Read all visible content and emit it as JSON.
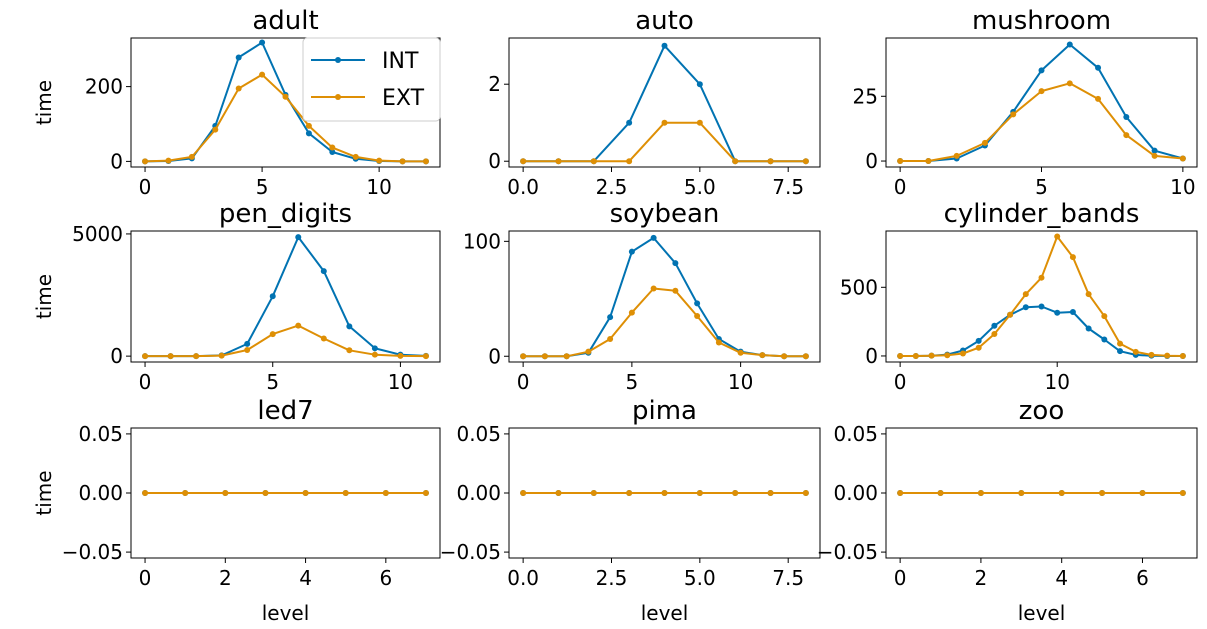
{
  "colors": {
    "INT": "#0173b2",
    "EXT": "#de8f05"
  },
  "legend": {
    "placement": "upper-right of first panel",
    "entries": [
      "INT",
      "EXT"
    ]
  },
  "chart_data": [
    {
      "type": "line",
      "title": "adult",
      "xlabel": "",
      "ylabel": "time",
      "xlim": [
        -0.6,
        12.6
      ],
      "ylim": [
        -15,
        330
      ],
      "xticks": [
        0,
        5,
        10
      ],
      "xtick_labels": [
        "0",
        "5",
        "10"
      ],
      "yticks": [
        0,
        200
      ],
      "ytick_labels": [
        "0",
        "200"
      ],
      "x": [
        0,
        1,
        2,
        3,
        4,
        5,
        6,
        7,
        8,
        9,
        10,
        11,
        12
      ],
      "series": [
        {
          "name": "INT",
          "values": [
            0,
            1,
            8,
            95,
            278,
            318,
            178,
            75,
            25,
            7,
            1,
            0,
            0
          ]
        },
        {
          "name": "EXT",
          "values": [
            0,
            2,
            12,
            85,
            195,
            232,
            173,
            95,
            37,
            12,
            2,
            0,
            0
          ]
        }
      ]
    },
    {
      "type": "line",
      "title": "auto",
      "xlabel": "",
      "ylabel": "",
      "xlim": [
        -0.4,
        8.4
      ],
      "ylim": [
        -0.15,
        3.2
      ],
      "xticks": [
        0,
        2.5,
        5,
        7.5
      ],
      "xtick_labels": [
        "0.0",
        "2.5",
        "5.0",
        "7.5"
      ],
      "yticks": [
        0,
        2
      ],
      "ytick_labels": [
        "0",
        "2"
      ],
      "x": [
        0,
        1,
        2,
        3,
        4,
        5,
        6,
        7,
        8
      ],
      "series": [
        {
          "name": "INT",
          "values": [
            0,
            0,
            0,
            1,
            3,
            2,
            0,
            0,
            0
          ]
        },
        {
          "name": "EXT",
          "values": [
            0,
            0,
            0,
            0,
            1,
            1,
            0,
            0,
            0
          ]
        }
      ]
    },
    {
      "type": "line",
      "title": "mushroom",
      "xlabel": "",
      "ylabel": "",
      "xlim": [
        -0.5,
        10.5
      ],
      "ylim": [
        -2.3,
        47.5
      ],
      "xticks": [
        0,
        5,
        10
      ],
      "xtick_labels": [
        "0",
        "5",
        "10"
      ],
      "yticks": [
        0,
        25
      ],
      "ytick_labels": [
        "0",
        "25"
      ],
      "x": [
        0,
        1,
        2,
        3,
        4,
        5,
        6,
        7,
        8,
        9,
        10
      ],
      "series": [
        {
          "name": "INT",
          "values": [
            0,
            0,
            1,
            6,
            19,
            35,
            45,
            36,
            17,
            4,
            1
          ]
        },
        {
          "name": "EXT",
          "values": [
            0,
            0,
            2,
            7,
            18,
            27,
            30,
            24,
            10,
            2,
            1
          ]
        }
      ]
    },
    {
      "type": "line",
      "title": "pen_digits",
      "xlabel": "",
      "ylabel": "time",
      "xlim": [
        -0.55,
        11.55
      ],
      "ylim": [
        -240,
        5120
      ],
      "xticks": [
        0,
        5,
        10
      ],
      "xtick_labels": [
        "0",
        "5",
        "10"
      ],
      "yticks": [
        0,
        5000
      ],
      "ytick_labels": [
        "0",
        "5000"
      ],
      "x": [
        0,
        1,
        2,
        3,
        4,
        5,
        6,
        7,
        8,
        9,
        10,
        11
      ],
      "series": [
        {
          "name": "INT",
          "values": [
            0,
            0,
            0,
            30,
            500,
            2450,
            4870,
            3480,
            1220,
            320,
            60,
            10
          ]
        },
        {
          "name": "EXT",
          "values": [
            0,
            0,
            0,
            20,
            250,
            900,
            1250,
            720,
            240,
            60,
            10,
            0
          ]
        }
      ]
    },
    {
      "type": "line",
      "title": "soybean",
      "xlabel": "",
      "ylabel": "",
      "xlim": [
        -0.65,
        13.65
      ],
      "ylim": [
        -5,
        109
      ],
      "xticks": [
        0,
        5,
        10
      ],
      "xtick_labels": [
        "0",
        "5",
        "10"
      ],
      "yticks": [
        0,
        100
      ],
      "ytick_labels": [
        "0",
        "100"
      ],
      "x": [
        0,
        1,
        2,
        3,
        4,
        5,
        6,
        7,
        8,
        9,
        10,
        11,
        12,
        13
      ],
      "series": [
        {
          "name": "INT",
          "values": [
            0,
            0,
            0,
            3,
            34,
            91,
            103,
            81,
            46,
            15,
            4,
            1,
            0,
            0
          ]
        },
        {
          "name": "EXT",
          "values": [
            0,
            0,
            0,
            4,
            15,
            38,
            59,
            57,
            35,
            12,
            3,
            1,
            0,
            0
          ]
        }
      ]
    },
    {
      "type": "line",
      "title": "cylinder_bands",
      "xlabel": "",
      "ylabel": "",
      "xlim": [
        -0.9,
        18.9
      ],
      "ylim": [
        -44,
        910
      ],
      "xticks": [
        0,
        10
      ],
      "xtick_labels": [
        "0",
        "10"
      ],
      "yticks": [
        0,
        500
      ],
      "ytick_labels": [
        "0",
        "500"
      ],
      "x": [
        0,
        1,
        2,
        3,
        4,
        5,
        6,
        7,
        8,
        9,
        10,
        11,
        12,
        13,
        14,
        15,
        16,
        17,
        18
      ],
      "series": [
        {
          "name": "INT",
          "values": [
            0,
            0,
            2,
            10,
            40,
            110,
            220,
            300,
            355,
            360,
            315,
            320,
            200,
            120,
            35,
            8,
            2,
            0,
            0
          ]
        },
        {
          "name": "EXT",
          "values": [
            0,
            0,
            2,
            5,
            18,
            60,
            160,
            300,
            450,
            570,
            870,
            720,
            450,
            290,
            90,
            30,
            8,
            2,
            0
          ]
        }
      ]
    },
    {
      "type": "line",
      "title": "led7",
      "xlabel": "level",
      "ylabel": "time",
      "xlim": [
        -0.35,
        7.35
      ],
      "ylim": [
        -0.055,
        0.055
      ],
      "xticks": [
        0,
        2,
        4,
        6
      ],
      "xtick_labels": [
        "0",
        "2",
        "4",
        "6"
      ],
      "yticks": [
        -0.05,
        0,
        0.05
      ],
      "ytick_labels": [
        "−0.05",
        "0.00",
        "0.05"
      ],
      "x": [
        0,
        1,
        2,
        3,
        4,
        5,
        6,
        7
      ],
      "series": [
        {
          "name": "INT",
          "values": [
            0,
            0,
            0,
            0,
            0,
            0,
            0,
            0
          ]
        },
        {
          "name": "EXT",
          "values": [
            0,
            0,
            0,
            0,
            0,
            0,
            0,
            0
          ]
        }
      ]
    },
    {
      "type": "line",
      "title": "pima",
      "xlabel": "level",
      "ylabel": "",
      "xlim": [
        -0.4,
        8.4
      ],
      "ylim": [
        -0.055,
        0.055
      ],
      "xticks": [
        0,
        2.5,
        5,
        7.5
      ],
      "xtick_labels": [
        "0.0",
        "2.5",
        "5.0",
        "7.5"
      ],
      "yticks": [
        -0.05,
        0,
        0.05
      ],
      "ytick_labels": [
        "−0.05",
        "0.00",
        "0.05"
      ],
      "x": [
        0,
        1,
        2,
        3,
        4,
        5,
        6,
        7,
        8
      ],
      "series": [
        {
          "name": "INT",
          "values": [
            0,
            0,
            0,
            0,
            0,
            0,
            0,
            0,
            0
          ]
        },
        {
          "name": "EXT",
          "values": [
            0,
            0,
            0,
            0,
            0,
            0,
            0,
            0,
            0
          ]
        }
      ]
    },
    {
      "type": "line",
      "title": "zoo",
      "xlabel": "level",
      "ylabel": "",
      "xlim": [
        -0.35,
        7.35
      ],
      "ylim": [
        -0.055,
        0.055
      ],
      "xticks": [
        0,
        2,
        4,
        6
      ],
      "xtick_labels": [
        "0",
        "2",
        "4",
        "6"
      ],
      "yticks": [
        -0.05,
        0,
        0.05
      ],
      "ytick_labels": [
        "−0.05",
        "0.00",
        "0.05"
      ],
      "x": [
        0,
        1,
        2,
        3,
        4,
        5,
        6,
        7
      ],
      "series": [
        {
          "name": "INT",
          "values": [
            0,
            0,
            0,
            0,
            0,
            0,
            0,
            0
          ]
        },
        {
          "name": "EXT",
          "values": [
            0,
            0,
            0,
            0,
            0,
            0,
            0,
            0
          ]
        }
      ]
    }
  ]
}
